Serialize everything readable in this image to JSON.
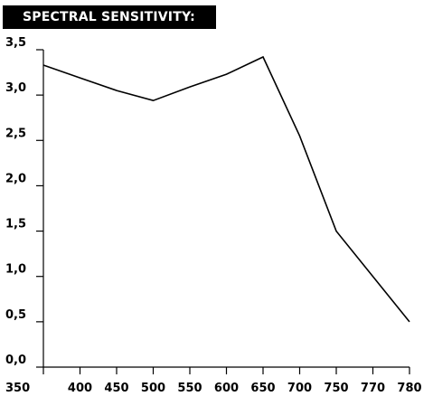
{
  "chart_data": {
    "type": "line",
    "title": "SPECTRAL SENSITIVITY:",
    "xlabel": "",
    "ylabel": "",
    "categories": [
      "350",
      "400",
      "450",
      "500",
      "550",
      "600",
      "650",
      "700",
      "750",
      "770",
      "780"
    ],
    "series": [
      {
        "values": [
          3.33,
          3.19,
          3.05,
          2.94,
          3.09,
          3.23,
          3.42,
          2.55,
          1.5,
          1.0,
          0.5
        ]
      }
    ],
    "y_ticks": [
      "0,0",
      "0,5",
      "1,0",
      "1,5",
      "2,0",
      "2,5",
      "3,0",
      "3,5"
    ],
    "ylim": [
      0,
      3.5
    ],
    "grid": false,
    "legend": "none",
    "colors": {
      "line": "#000000",
      "title_background": "#000000",
      "title_text": "#ffffff"
    }
  }
}
